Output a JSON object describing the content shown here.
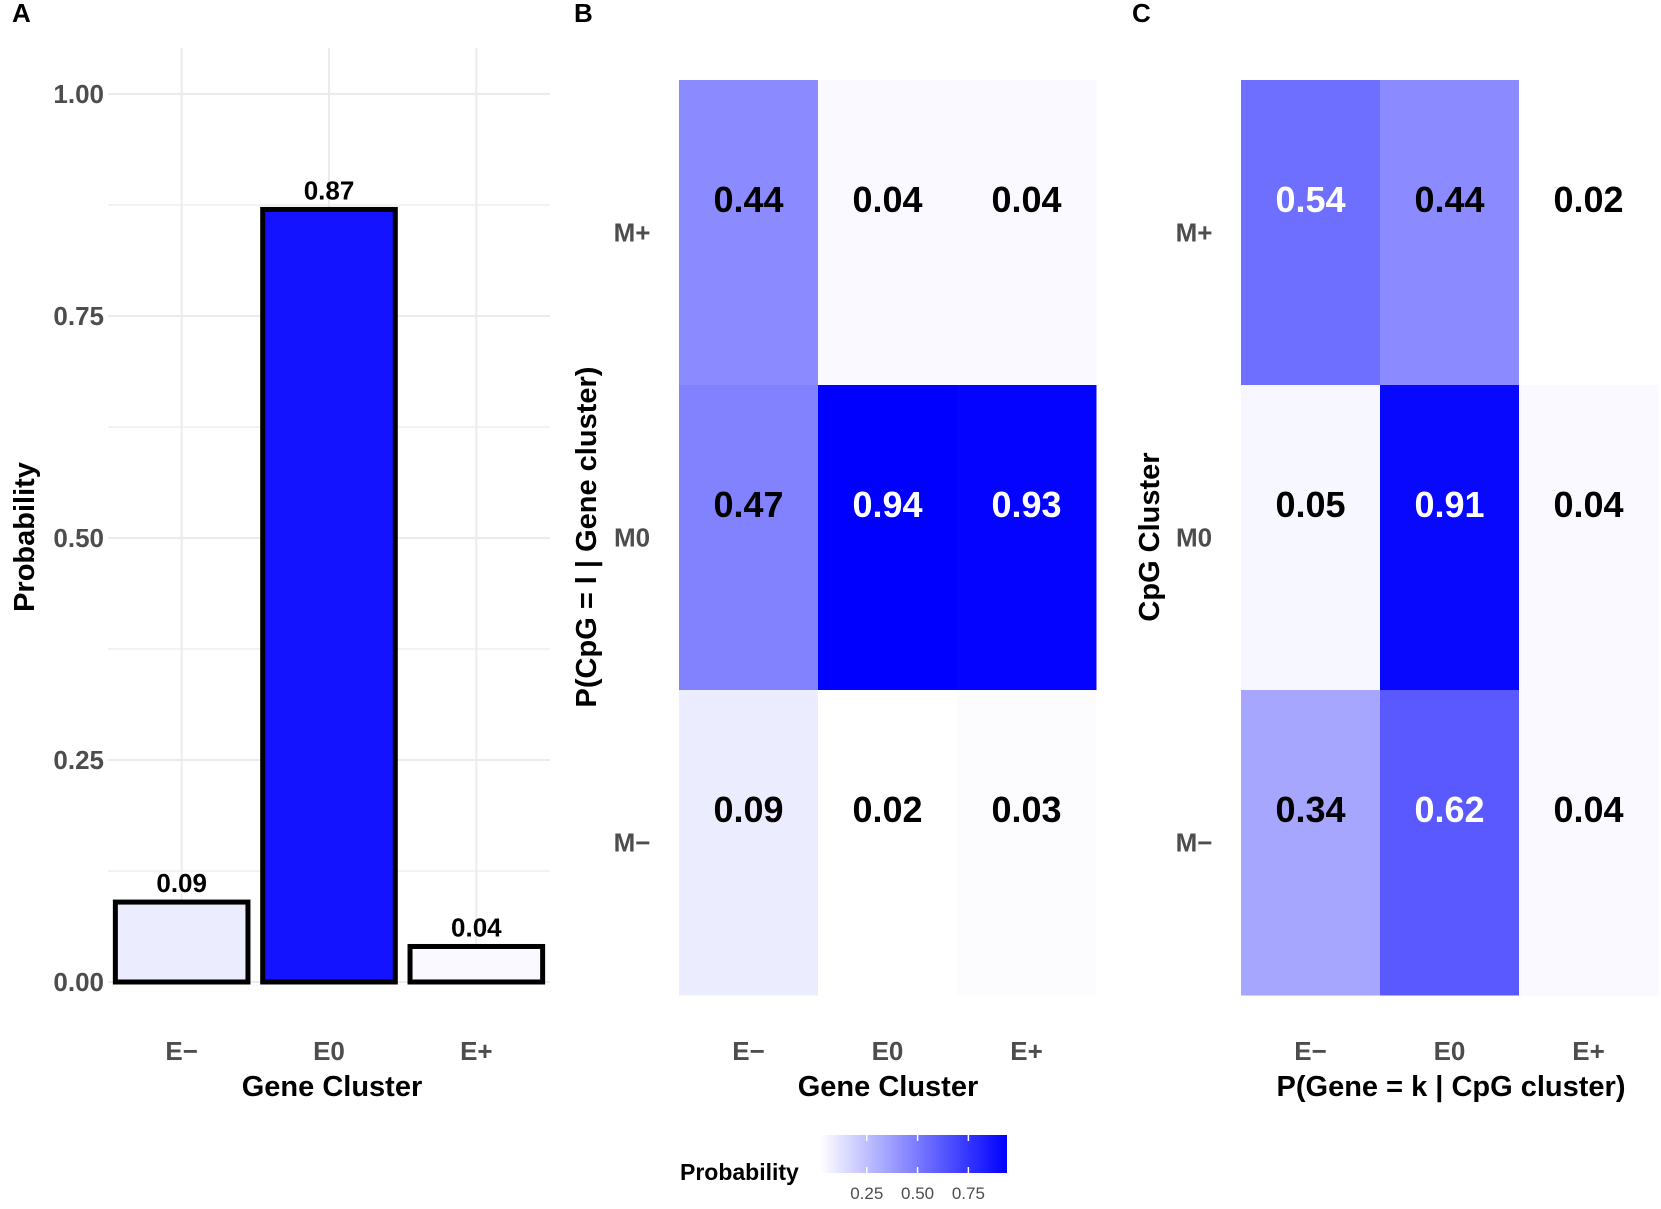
{
  "colors": {
    "low": "#ffffff",
    "high": "#0000ff",
    "grid": "#ebebeb",
    "outline": "#000000"
  },
  "chart_data": [
    {
      "panel": "A",
      "type": "bar",
      "title": "",
      "xlabel": "Gene Cluster",
      "ylabel": "Probability",
      "categories": [
        "E−",
        "E0",
        "E+"
      ],
      "values": [
        0.09,
        0.87,
        0.04
      ],
      "value_labels": [
        "0.09",
        "0.87",
        "0.04"
      ],
      "ylim": [
        0,
        1.05
      ],
      "yticks": [
        0,
        0.25,
        0.5,
        0.75,
        1.0
      ],
      "ytick_labels": [
        "0.00",
        "0.25",
        "0.50",
        "0.75",
        "1.00"
      ],
      "grid": true
    },
    {
      "panel": "B",
      "type": "heatmap",
      "xlabel": "Gene Cluster",
      "ylabel": "P(CpG = l | Gene cluster)",
      "x_categories": [
        "E−",
        "E0",
        "E+"
      ],
      "y_categories": [
        "M+",
        "M0",
        "M−"
      ],
      "values": [
        [
          0.44,
          0.04,
          0.04
        ],
        [
          0.47,
          0.94,
          0.93
        ],
        [
          0.09,
          0.02,
          0.03
        ]
      ],
      "value_labels": [
        [
          "0.44",
          "0.04",
          "0.04"
        ],
        [
          "0.47",
          "0.94",
          "0.93"
        ],
        [
          "0.09",
          "0.02",
          "0.03"
        ]
      ]
    },
    {
      "panel": "C",
      "type": "heatmap",
      "xlabel": "P(Gene = k | CpG cluster)",
      "ylabel": "CpG Cluster",
      "x_categories": [
        "E−",
        "E0",
        "E+"
      ],
      "y_categories": [
        "M+",
        "M0",
        "M−"
      ],
      "values": [
        [
          0.54,
          0.44,
          0.02
        ],
        [
          0.05,
          0.91,
          0.04
        ],
        [
          0.34,
          0.62,
          0.04
        ]
      ],
      "value_labels": [
        [
          "0.54",
          "0.44",
          "0.02"
        ],
        [
          "0.05",
          "0.91",
          "0.04"
        ],
        [
          "0.34",
          "0.62",
          "0.04"
        ]
      ]
    }
  ],
  "legend": {
    "title": "Probability",
    "ticks": [
      0.25,
      0.5,
      0.75
    ],
    "tick_labels": [
      "0.25",
      "0.50",
      "0.75"
    ],
    "range": [
      0.02,
      0.94
    ]
  }
}
